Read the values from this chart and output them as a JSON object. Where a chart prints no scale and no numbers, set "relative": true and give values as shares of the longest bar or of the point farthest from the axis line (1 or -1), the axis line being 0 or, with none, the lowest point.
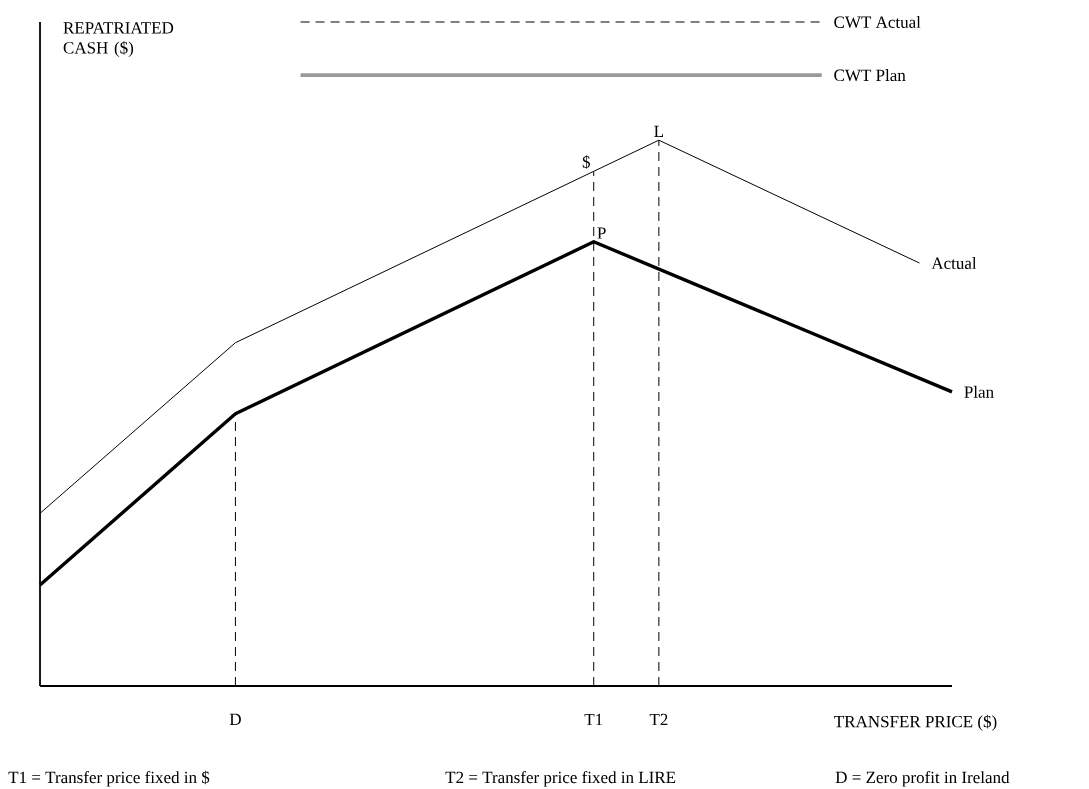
{
  "chart_data": {
    "type": "line",
    "relative": true,
    "ylabel": "REPATRIATED CASH ($)",
    "xlabel": "TRANSFER PRICE ($)",
    "categories": [
      null,
      null,
      null,
      null,
      null,
      null,
      "D",
      null,
      null,
      null,
      null,
      null,
      null,
      null,
      null,
      null,
      null,
      "T1",
      null,
      "T2",
      null,
      null,
      null,
      null,
      null,
      null,
      null,
      null,
      null
    ],
    "tick_labels": "x",
    "marker": "none",
    "series": [
      {
        "name": "Actual",
        "color": "#000000",
        "values": [
          0.26,
          null,
          null,
          null,
          null,
          null,
          0.517,
          null,
          null,
          null,
          null,
          null,
          null,
          null,
          null,
          null,
          null,
          null,
          null,
          0.822,
          null,
          null,
          null,
          null,
          null,
          null,
          null,
          0.637,
          null
        ]
      },
      {
        "name": "Plan",
        "color": "#000000",
        "values": [
          0.152,
          null,
          null,
          null,
          null,
          null,
          0.41,
          null,
          null,
          null,
          null,
          null,
          null,
          null,
          null,
          null,
          null,
          0.669,
          null,
          null,
          null,
          null,
          null,
          null,
          null,
          null,
          null,
          null,
          0.443
        ]
      },
      {
        "name": "CWT Actual",
        "color": "#000000",
        "line_style": "dashed",
        "values": [
          null,
          null,
          null,
          null,
          null,
          null,
          null,
          null,
          1,
          null,
          null,
          null,
          null,
          null,
          null,
          null,
          null,
          null,
          null,
          null,
          null,
          null,
          null,
          null,
          1,
          null,
          null,
          null,
          null
        ]
      },
      {
        "name": "CWT Plan",
        "color": "#999999",
        "values": [
          null,
          null,
          null,
          null,
          null,
          null,
          null,
          null,
          0.92,
          null,
          null,
          null,
          null,
          null,
          null,
          null,
          null,
          null,
          null,
          null,
          null,
          null,
          null,
          null,
          0.92,
          null,
          null,
          null,
          null
        ]
      },
      {
        "color": "#000000",
        "line_style": "dashed",
        "x": [
          "D",
          "D"
        ],
        "values": [
          0,
          0.41
        ]
      },
      {
        "color": "#000000",
        "line_style": "dashed",
        "x": [
          "T1",
          "T1"
        ],
        "values": [
          0,
          0.774
        ]
      },
      {
        "color": "#000000",
        "line_style": "dashed",
        "x": [
          "T2",
          "T2"
        ],
        "values": [
          0,
          0.822
        ]
      }
    ],
    "annotations": [
      {
        "text": "$",
        "x": "T1",
        "y": 0.774
      },
      {
        "text": "L",
        "x": "T2",
        "y": 0.822
      },
      {
        "text": "P",
        "x": "T1",
        "y": 0.669
      },
      "T1 = Transfer price fixed in $",
      "T2 = Transfer price fixed in LIRE",
      "D = Zero profit in Ireland"
    ]
  }
}
